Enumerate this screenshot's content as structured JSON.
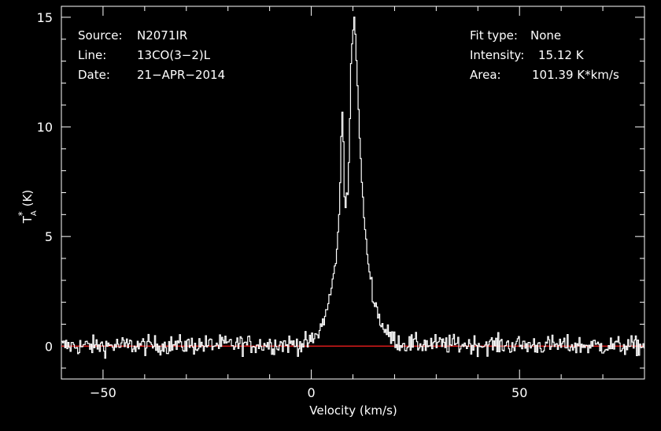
{
  "info_left": [
    {
      "key": "Source:",
      "value": "N2071IR"
    },
    {
      "key": "Line:",
      "value": "13CO(3−2)L"
    },
    {
      "key": "Date:",
      "value": "21−APR−2014"
    }
  ],
  "info_right": [
    {
      "key": "Fit type:",
      "value": "None"
    },
    {
      "key": "Intensity:",
      "value": "15.12 K"
    },
    {
      "key": "Area:",
      "value": "101.39 K*km/s"
    }
  ],
  "colors": {
    "background": "#000000",
    "axes": "#ffffff",
    "spectrum": "#ffffff",
    "baseline": "#ff2020"
  },
  "chart_data": {
    "type": "line",
    "title": "",
    "xlabel": "Velocity (km/s)",
    "ylabel_main": "T",
    "ylabel_sup": "*",
    "ylabel_sub": "A",
    "ylabel_unit": "(K)",
    "xlim": [
      -60,
      80
    ],
    "ylim": [
      -1.5,
      15.5
    ],
    "x_ticks": [
      -50,
      0,
      50
    ],
    "x_tick_labels": [
      "−50",
      "0",
      "50"
    ],
    "y_ticks": [
      0,
      5,
      10,
      15
    ],
    "y_tick_labels": [
      "0",
      "5",
      "10",
      "15"
    ],
    "baseline_y": 0,
    "noise_rms": 0.22,
    "channel_width": 0.26,
    "series": [
      {
        "points": [
          [
            -60,
            0.0
          ],
          [
            -2,
            0.1
          ],
          [
            0,
            0.2
          ],
          [
            1,
            0.4
          ],
          [
            2,
            0.7
          ],
          [
            3,
            1.2
          ],
          [
            4,
            1.8
          ],
          [
            5,
            2.8
          ],
          [
            6,
            4.0
          ],
          [
            6.8,
            6.2
          ],
          [
            7.2,
            9.5
          ],
          [
            7.5,
            10.8
          ],
          [
            7.8,
            9.0
          ],
          [
            8.1,
            5.5
          ],
          [
            8.4,
            7.3
          ],
          [
            8.8,
            6.8
          ],
          [
            9.2,
            9.5
          ],
          [
            9.6,
            13.5
          ],
          [
            10.0,
            14.0
          ],
          [
            10.3,
            15.1
          ],
          [
            10.7,
            13.8
          ],
          [
            11.3,
            11.0
          ],
          [
            12.0,
            8.0
          ],
          [
            12.8,
            5.5
          ],
          [
            13.8,
            3.6
          ],
          [
            15.0,
            2.2
          ],
          [
            16.5,
            1.2
          ],
          [
            18.0,
            0.6
          ],
          [
            20.0,
            0.3
          ],
          [
            22.0,
            0.1
          ],
          [
            80,
            0.0
          ]
        ]
      }
    ]
  }
}
